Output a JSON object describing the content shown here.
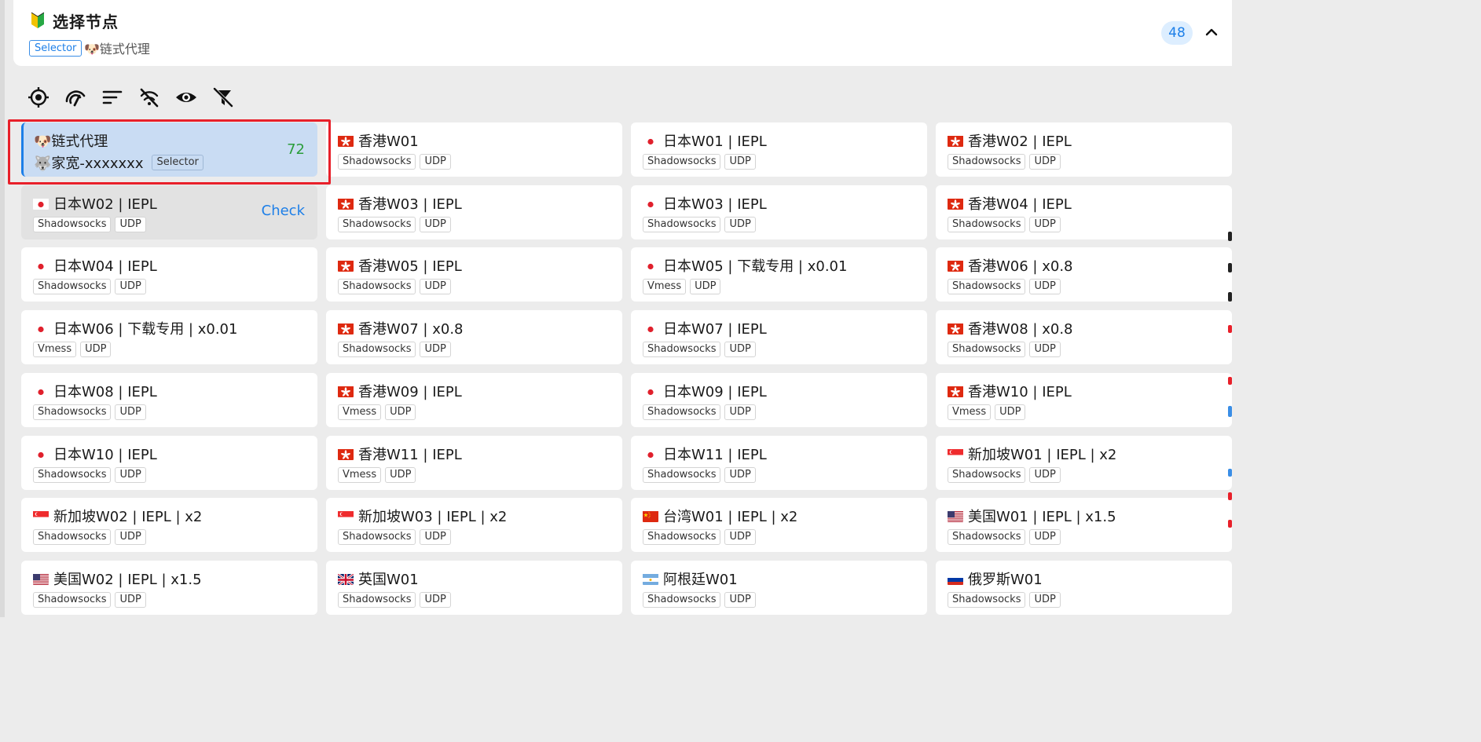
{
  "header": {
    "title": "选择节点",
    "type_badge": "Selector",
    "current_selection": "🐶链式代理",
    "node_count": "48"
  },
  "toolbar": {
    "icons": [
      "locate-icon",
      "speed-test-icon",
      "sort-icon",
      "hide-unavailable-icon",
      "visibility-icon",
      "filter-off-icon"
    ]
  },
  "colors": {
    "accent": "#1d7fe8",
    "delay_good": "#2a9d3a",
    "highlight": "#e8202a"
  },
  "nodes": [
    {
      "name": "🐶链式代理",
      "sub": "🐺家宽-xxxxxxx",
      "tags": [
        "Selector"
      ],
      "flag": "",
      "right": "72",
      "state": "active"
    },
    {
      "name": "香港W01",
      "tags": [
        "Shadowsocks",
        "UDP"
      ],
      "flag": "hk"
    },
    {
      "name": "日本W01 | IEPL",
      "tags": [
        "Shadowsocks",
        "UDP"
      ],
      "flag": "jp"
    },
    {
      "name": "香港W02 | IEPL",
      "tags": [
        "Shadowsocks",
        "UDP"
      ],
      "flag": "hk"
    },
    {
      "name": "日本W02 | IEPL",
      "tags": [
        "Shadowsocks",
        "UDP"
      ],
      "flag": "jp",
      "right": "Check",
      "state": "hover"
    },
    {
      "name": "香港W03 | IEPL",
      "tags": [
        "Shadowsocks",
        "UDP"
      ],
      "flag": "hk"
    },
    {
      "name": "日本W03 | IEPL",
      "tags": [
        "Shadowsocks",
        "UDP"
      ],
      "flag": "jp"
    },
    {
      "name": "香港W04 | IEPL",
      "tags": [
        "Shadowsocks",
        "UDP"
      ],
      "flag": "hk"
    },
    {
      "name": "日本W04 | IEPL",
      "tags": [
        "Shadowsocks",
        "UDP"
      ],
      "flag": "jp"
    },
    {
      "name": "香港W05 | IEPL",
      "tags": [
        "Shadowsocks",
        "UDP"
      ],
      "flag": "hk"
    },
    {
      "name": "日本W05 | 下载专用 | x0.01",
      "tags": [
        "Vmess",
        "UDP"
      ],
      "flag": "jp"
    },
    {
      "name": "香港W06 | x0.8",
      "tags": [
        "Shadowsocks",
        "UDP"
      ],
      "flag": "hk"
    },
    {
      "name": "日本W06 | 下载专用 | x0.01",
      "tags": [
        "Vmess",
        "UDP"
      ],
      "flag": "jp"
    },
    {
      "name": "香港W07 | x0.8",
      "tags": [
        "Shadowsocks",
        "UDP"
      ],
      "flag": "hk"
    },
    {
      "name": "日本W07 | IEPL",
      "tags": [
        "Shadowsocks",
        "UDP"
      ],
      "flag": "jp"
    },
    {
      "name": "香港W08 | x0.8",
      "tags": [
        "Shadowsocks",
        "UDP"
      ],
      "flag": "hk"
    },
    {
      "name": "日本W08 | IEPL",
      "tags": [
        "Shadowsocks",
        "UDP"
      ],
      "flag": "jp"
    },
    {
      "name": "香港W09 | IEPL",
      "tags": [
        "Vmess",
        "UDP"
      ],
      "flag": "hk"
    },
    {
      "name": "日本W09 | IEPL",
      "tags": [
        "Shadowsocks",
        "UDP"
      ],
      "flag": "jp"
    },
    {
      "name": "香港W10 | IEPL",
      "tags": [
        "Vmess",
        "UDP"
      ],
      "flag": "hk"
    },
    {
      "name": "日本W10 | IEPL",
      "tags": [
        "Shadowsocks",
        "UDP"
      ],
      "flag": "jp"
    },
    {
      "name": "香港W11 | IEPL",
      "tags": [
        "Vmess",
        "UDP"
      ],
      "flag": "hk"
    },
    {
      "name": "日本W11 | IEPL",
      "tags": [
        "Shadowsocks",
        "UDP"
      ],
      "flag": "jp"
    },
    {
      "name": "新加坡W01 | IEPL | x2",
      "tags": [
        "Shadowsocks",
        "UDP"
      ],
      "flag": "sg"
    },
    {
      "name": "新加坡W02 | IEPL | x2",
      "tags": [
        "Shadowsocks",
        "UDP"
      ],
      "flag": "sg"
    },
    {
      "name": "新加坡W03 | IEPL | x2",
      "tags": [
        "Shadowsocks",
        "UDP"
      ],
      "flag": "sg"
    },
    {
      "name": "台湾W01 | IEPL | x2",
      "tags": [
        "Shadowsocks",
        "UDP"
      ],
      "flag": "cn"
    },
    {
      "name": "美国W01 | IEPL | x1.5",
      "tags": [
        "Shadowsocks",
        "UDP"
      ],
      "flag": "us"
    },
    {
      "name": "美国W02 | IEPL | x1.5",
      "tags": [
        "Shadowsocks",
        "UDP"
      ],
      "flag": "us"
    },
    {
      "name": "英国W01",
      "tags": [
        "Shadowsocks",
        "UDP"
      ],
      "flag": "gb"
    },
    {
      "name": "阿根廷W01",
      "tags": [
        "Shadowsocks",
        "UDP"
      ],
      "flag": "ar"
    },
    {
      "name": "俄罗斯W01",
      "tags": [
        "Shadowsocks",
        "UDP"
      ],
      "flag": "ru"
    }
  ]
}
